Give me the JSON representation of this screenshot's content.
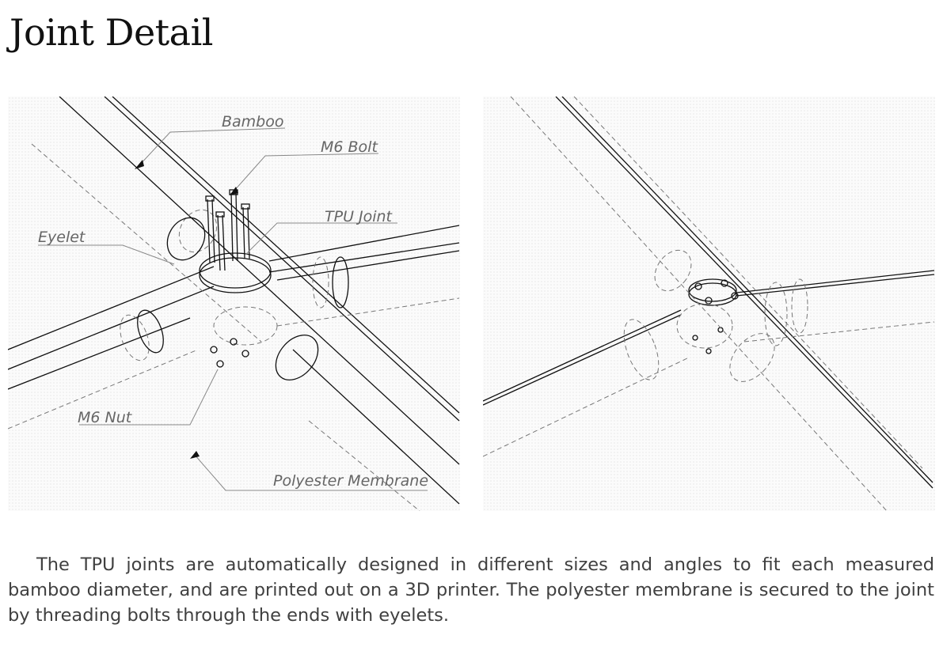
{
  "title": "Joint Detail",
  "labels": {
    "bamboo": "Bamboo",
    "bolt": "M6 Bolt",
    "tpu_joint": "TPU Joint",
    "eyelet": "Eyelet",
    "nut": "M6 Nut",
    "membrane": "Polyester Membrane"
  },
  "caption": "The TPU joints are automatically designed in different sizes and angles to fit each measured bamboo diameter, and are printed out on a 3D printer. The polyester membrane is secured to the joint by threading bolts through the ends with eyelets."
}
